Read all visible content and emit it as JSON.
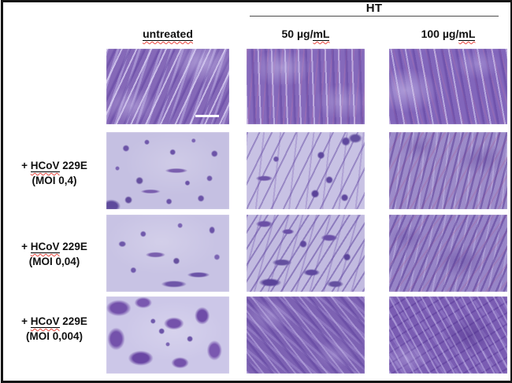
{
  "figure": {
    "treatment_header": "HT",
    "columns": [
      {
        "prefix": "",
        "underlined": "untreated"
      },
      {
        "prefix": "50 µg/",
        "underlined": "mL"
      },
      {
        "prefix": "100 µg/",
        "underlined": "mL"
      }
    ],
    "rows": [
      {
        "label_prefix": "",
        "label_virus": "",
        "label_suffix": "",
        "label_moi": "",
        "cells": [
          "confluent-fibroblasts-a",
          "confluent-fibroblasts-b",
          "confluent-fibroblasts-c"
        ]
      },
      {
        "label_prefix": "+ ",
        "label_virus": "HCoV",
        "label_suffix": " 229E",
        "label_moi": "(MOI 0,4)",
        "cells": [
          "cpe-sparse-cells-a",
          "partial-protection-a",
          "dense-protected-a"
        ]
      },
      {
        "label_prefix": "+ ",
        "label_virus": "HCoV",
        "label_suffix": " 229E",
        "label_moi": "(MOI 0,04)",
        "cells": [
          "cpe-sparse-cells-b",
          "partial-protection-b",
          "dense-protected-b"
        ]
      },
      {
        "label_prefix": "+ ",
        "label_virus": "HCoV",
        "label_suffix": " 229E",
        "label_moi": "(MOI 0,004)",
        "cells": [
          "cpe-clumps",
          "confluent-fibroblasts-d",
          "confluent-fibroblasts-e"
        ]
      }
    ],
    "stain_palette": {
      "pale_background": "#c7c2e4",
      "cell_purple": "#8168b7",
      "dark_stain": "#5f449f",
      "squiggle_red": "#e8443c"
    }
  }
}
